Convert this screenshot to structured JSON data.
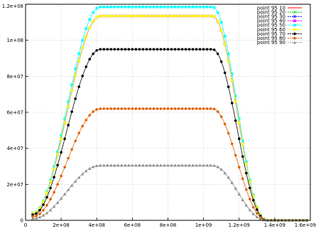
{
  "chart_data": {
    "type": "line",
    "title": "",
    "xlabel": "",
    "ylabel": "",
    "xlim": [
      0,
      1600000000
    ],
    "ylim": [
      0,
      120000000
    ],
    "x_ticks": [
      {
        "value": 0,
        "label": "0"
      },
      {
        "value": 200000000,
        "label": "2e+08"
      },
      {
        "value": 400000000,
        "label": "4e+08"
      },
      {
        "value": 600000000,
        "label": "6e+08"
      },
      {
        "value": 800000000,
        "label": "8e+08"
      },
      {
        "value": 1000000000,
        "label": "1e+09"
      },
      {
        "value": 1200000000,
        "label": "1.2e+09"
      },
      {
        "value": 1400000000,
        "label": "1.4e+09"
      },
      {
        "value": 1600000000,
        "label": "1.6e+09"
      }
    ],
    "y_ticks": [
      {
        "value": 0,
        "label": "0"
      },
      {
        "value": 20000000,
        "label": "2e+07"
      },
      {
        "value": 40000000,
        "label": "4e+07"
      },
      {
        "value": 60000000,
        "label": "6e+07"
      },
      {
        "value": 80000000,
        "label": "8e+07"
      },
      {
        "value": 100000000,
        "label": "1e+08"
      },
      {
        "value": 120000000,
        "label": "1.2e+08"
      }
    ],
    "grid": true,
    "legend_position": "top-right",
    "series": [
      {
        "name": "point 95 10",
        "color": "#ff0000",
        "marker": "none",
        "plateau": 113500000
      },
      {
        "name": "point 95 20",
        "color": "#00c000",
        "marker": "x",
        "plateau": 113500000
      },
      {
        "name": "point 95 30",
        "color": "#0000ff",
        "marker": "star",
        "plateau": 113500000
      },
      {
        "name": "point 95 40",
        "color": "#ff00ff",
        "marker": "square",
        "plateau": 113500000
      },
      {
        "name": "point 95 50",
        "color": "#00ffff",
        "marker": "square",
        "plateau": 118500000
      },
      {
        "name": "point 95 60",
        "color": "#ffff00",
        "marker": "square",
        "plateau": 113500000
      },
      {
        "name": "point 95 70",
        "color": "#000000",
        "marker": "circle",
        "plateau": 95000000
      },
      {
        "name": "point 95 80",
        "color": "#e06000",
        "marker": "circle",
        "plateau": 62000000
      },
      {
        "name": "point 95 90",
        "color": "#909090",
        "marker": "triangle",
        "plateau": 30500000
      }
    ]
  }
}
